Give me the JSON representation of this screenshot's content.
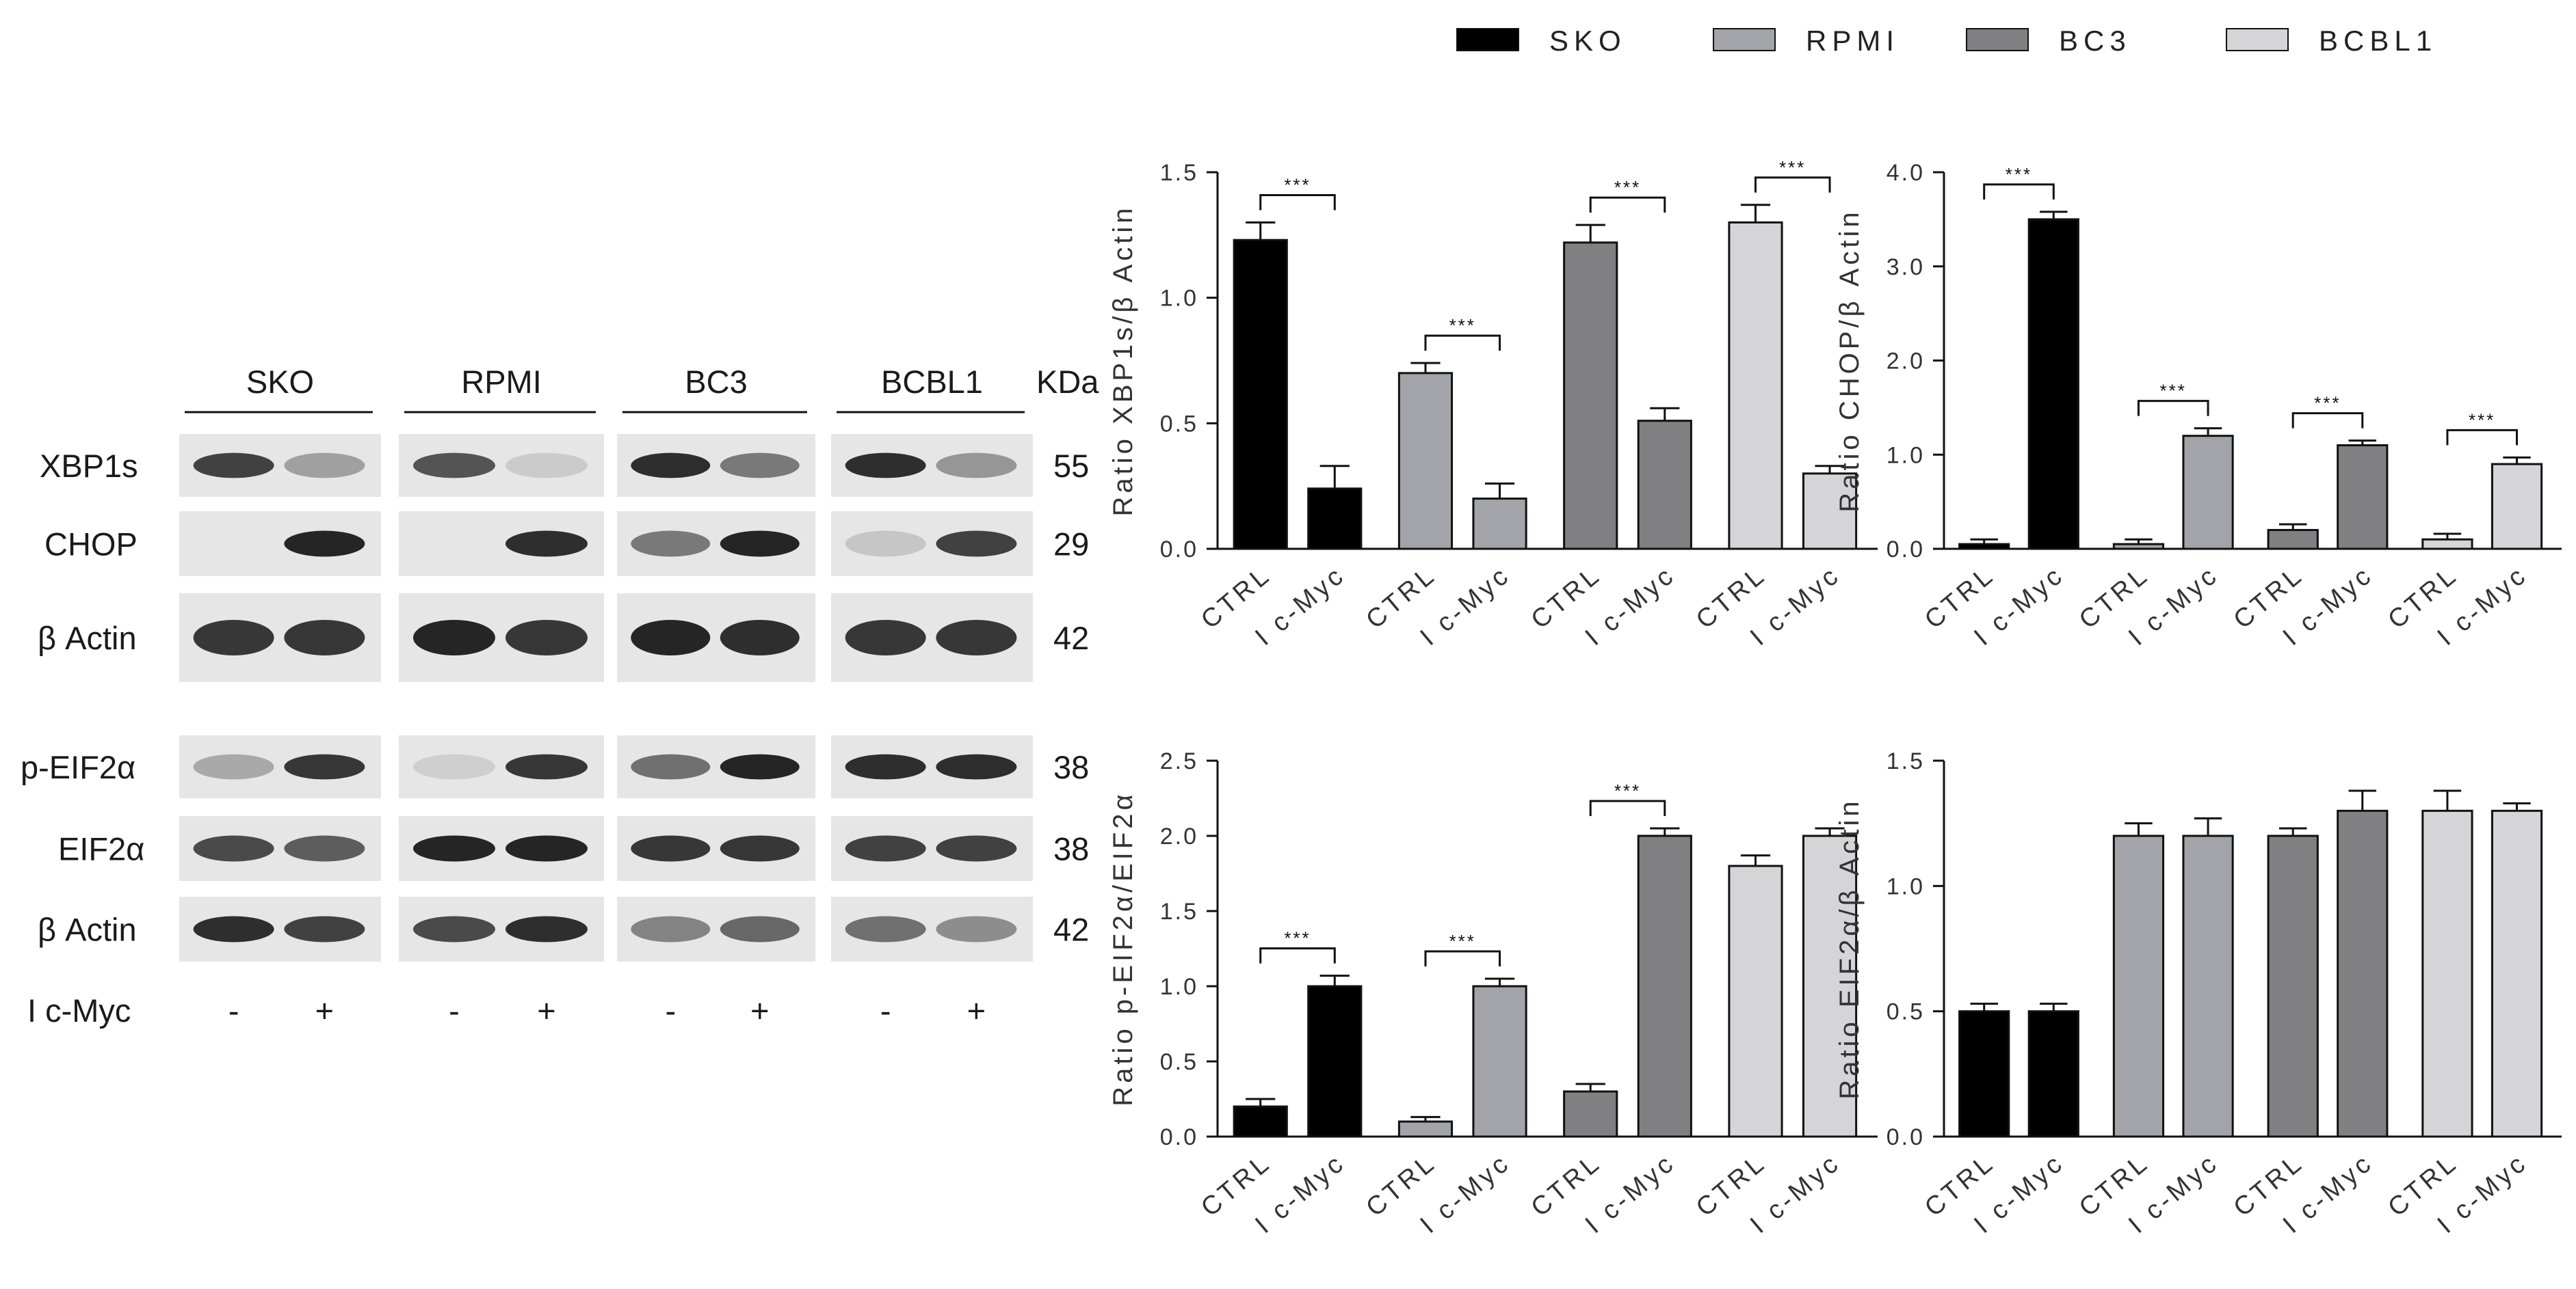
{
  "legend": {
    "placement": "top-right",
    "items": [
      {
        "label": "SKO",
        "color": "#000000"
      },
      {
        "label": "RPMI",
        "color": "#a3a3aa"
      },
      {
        "label": "BC3",
        "color": "#808082"
      },
      {
        "label": "BCBL1",
        "color": "#d5d5d7"
      }
    ]
  },
  "blot": {
    "groups": [
      "SKO",
      "RPMI",
      "BC3",
      "BCBL1"
    ],
    "kda_header": "KDa",
    "rows": [
      {
        "label": "XBP1s",
        "kda": "55",
        "section": 1,
        "intensity": [
          [
            0.85,
            0.35
          ],
          [
            0.75,
            0.12
          ],
          [
            0.95,
            0.55
          ],
          [
            0.95,
            0.4
          ]
        ]
      },
      {
        "label": "CHOP",
        "kda": "29",
        "section": 1,
        "intensity": [
          [
            0.0,
            1.0
          ],
          [
            0.0,
            0.95
          ],
          [
            0.55,
            1.0
          ],
          [
            0.15,
            0.85
          ]
        ]
      },
      {
        "label": "β Actin",
        "kda": "42",
        "section": 1,
        "intensity": [
          [
            0.9,
            0.9
          ],
          [
            1.0,
            0.9
          ],
          [
            1.0,
            0.95
          ],
          [
            0.9,
            0.9
          ]
        ]
      },
      {
        "label": "p-EIF2α",
        "kda": "38",
        "section": 2,
        "intensity": [
          [
            0.3,
            0.9
          ],
          [
            0.1,
            0.9
          ],
          [
            0.6,
            1.0
          ],
          [
            0.95,
            0.95
          ]
        ]
      },
      {
        "label": "EIF2α",
        "kda": "38",
        "section": 2,
        "intensity": [
          [
            0.8,
            0.7
          ],
          [
            1.0,
            1.0
          ],
          [
            0.9,
            0.9
          ],
          [
            0.85,
            0.85
          ]
        ]
      },
      {
        "label": "β Actin",
        "kda": "42",
        "section": 2,
        "intensity": [
          [
            0.95,
            0.85
          ],
          [
            0.8,
            0.95
          ],
          [
            0.5,
            0.65
          ],
          [
            0.6,
            0.45
          ]
        ]
      }
    ],
    "treatment_label": "I c-Myc",
    "treatment_marks": [
      "-",
      "+"
    ]
  },
  "chart_data": [
    {
      "type": "bar",
      "ylabel": "Ratio XBP1s/β Actin",
      "ylim": [
        0,
        1.5
      ],
      "yticks": [
        "0.0",
        "0.5",
        "1.0",
        "1.5"
      ],
      "categories": [
        "CTRL",
        "I c-Myc"
      ],
      "series": [
        {
          "name": "SKO",
          "values": [
            1.23,
            0.24
          ],
          "errors": [
            0.07,
            0.09
          ]
        },
        {
          "name": "RPMI",
          "values": [
            0.7,
            0.2
          ],
          "errors": [
            0.04,
            0.06
          ]
        },
        {
          "name": "BC3",
          "values": [
            1.22,
            0.51
          ],
          "errors": [
            0.07,
            0.05
          ]
        },
        {
          "name": "BCBL1",
          "values": [
            1.3,
            0.3
          ],
          "errors": [
            0.07,
            0.03
          ]
        }
      ],
      "significance": [
        "***",
        "***",
        "***",
        "***"
      ]
    },
    {
      "type": "bar",
      "ylabel": "Ratio CHOP/β Actin",
      "ylim": [
        0,
        4.0
      ],
      "yticks": [
        "0.0",
        "1.0",
        "2.0",
        "3.0",
        "4.0"
      ],
      "categories": [
        "CTRL",
        "I c-Myc"
      ],
      "series": [
        {
          "name": "SKO",
          "values": [
            0.05,
            3.5
          ],
          "errors": [
            0.05,
            0.08
          ]
        },
        {
          "name": "RPMI",
          "values": [
            0.05,
            1.2
          ],
          "errors": [
            0.05,
            0.08
          ]
        },
        {
          "name": "BC3",
          "values": [
            0.2,
            1.1
          ],
          "errors": [
            0.06,
            0.05
          ]
        },
        {
          "name": "BCBL1",
          "values": [
            0.1,
            0.9
          ],
          "errors": [
            0.06,
            0.07
          ]
        }
      ],
      "significance": [
        "***",
        "***",
        "***",
        "***"
      ]
    },
    {
      "type": "bar",
      "ylabel": "Ratio p-EIF2α/EIF2α",
      "ylim": [
        0,
        2.5
      ],
      "yticks": [
        "0.0",
        "0.5",
        "1.0",
        "1.5",
        "2.0",
        "2.5"
      ],
      "categories": [
        "CTRL",
        "I c-Myc"
      ],
      "series": [
        {
          "name": "SKO",
          "values": [
            0.2,
            1.0
          ],
          "errors": [
            0.05,
            0.07
          ]
        },
        {
          "name": "RPMI",
          "values": [
            0.1,
            1.0
          ],
          "errors": [
            0.03,
            0.05
          ]
        },
        {
          "name": "BC3",
          "values": [
            0.3,
            2.0
          ],
          "errors": [
            0.05,
            0.05
          ]
        },
        {
          "name": "BCBL1",
          "values": [
            1.8,
            2.0
          ],
          "errors": [
            0.07,
            0.05
          ]
        }
      ],
      "significance": [
        "***",
        "***",
        "***",
        ""
      ]
    },
    {
      "type": "bar",
      "ylabel": "Ratio EIF2α/β Actin",
      "ylim": [
        0,
        1.5
      ],
      "yticks": [
        "0.0",
        "0.5",
        "1.0",
        "1.5"
      ],
      "categories": [
        "CTRL",
        "I c-Myc"
      ],
      "series": [
        {
          "name": "SKO",
          "values": [
            0.5,
            0.5
          ],
          "errors": [
            0.03,
            0.03
          ]
        },
        {
          "name": "RPMI",
          "values": [
            1.2,
            1.2
          ],
          "errors": [
            0.05,
            0.07
          ]
        },
        {
          "name": "BC3",
          "values": [
            1.2,
            1.3
          ],
          "errors": [
            0.03,
            0.08
          ]
        },
        {
          "name": "BCBL1",
          "values": [
            1.3,
            1.3
          ],
          "errors": [
            0.08,
            0.03
          ]
        }
      ],
      "significance": [
        "",
        "",
        "",
        ""
      ]
    }
  ]
}
